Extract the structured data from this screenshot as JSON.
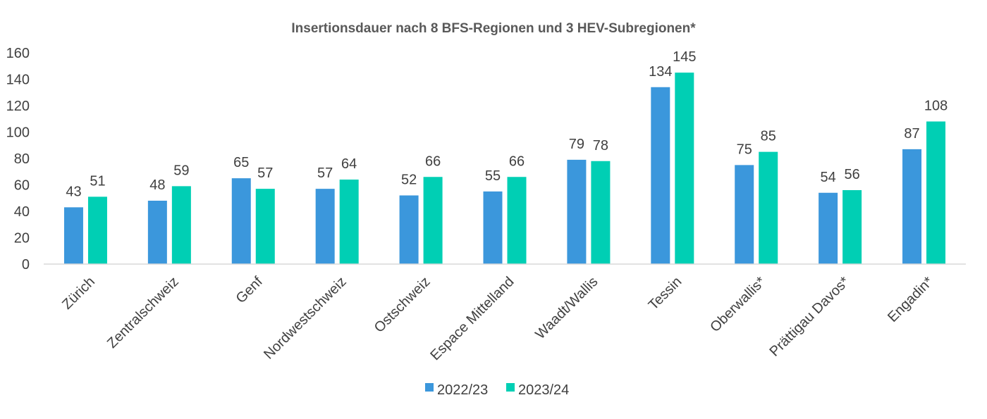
{
  "chart_data": {
    "type": "bar",
    "title": "Insertionsdauer nach 8 BFS-Regionen und 3 HEV-Subregionen*",
    "xlabel": "",
    "ylabel": "",
    "ylim": [
      0,
      160
    ],
    "yticks": [
      "0",
      "20",
      "40",
      "60",
      "80",
      "100",
      "120",
      "140",
      "160"
    ],
    "grid": false,
    "legend_position": "bottom",
    "categories": [
      "Zürich",
      "Zentralschweiz",
      "Genf",
      "Nordwestschweiz",
      "Ostschweiz",
      "Espace Mittelland",
      "Waadt/Wallis",
      "Tessin",
      "Oberwallis*",
      "Prättigau Davos*",
      "Engadin*"
    ],
    "series": [
      {
        "name": "2022/23",
        "color": "#3B97DC",
        "values": [
          43,
          48,
          65,
          57,
          52,
          55,
          79,
          134,
          75,
          54,
          87
        ]
      },
      {
        "name": "2023/24",
        "color": "#00CFB4",
        "values": [
          51,
          59,
          57,
          64,
          66,
          66,
          78,
          145,
          85,
          56,
          108
        ]
      }
    ]
  }
}
